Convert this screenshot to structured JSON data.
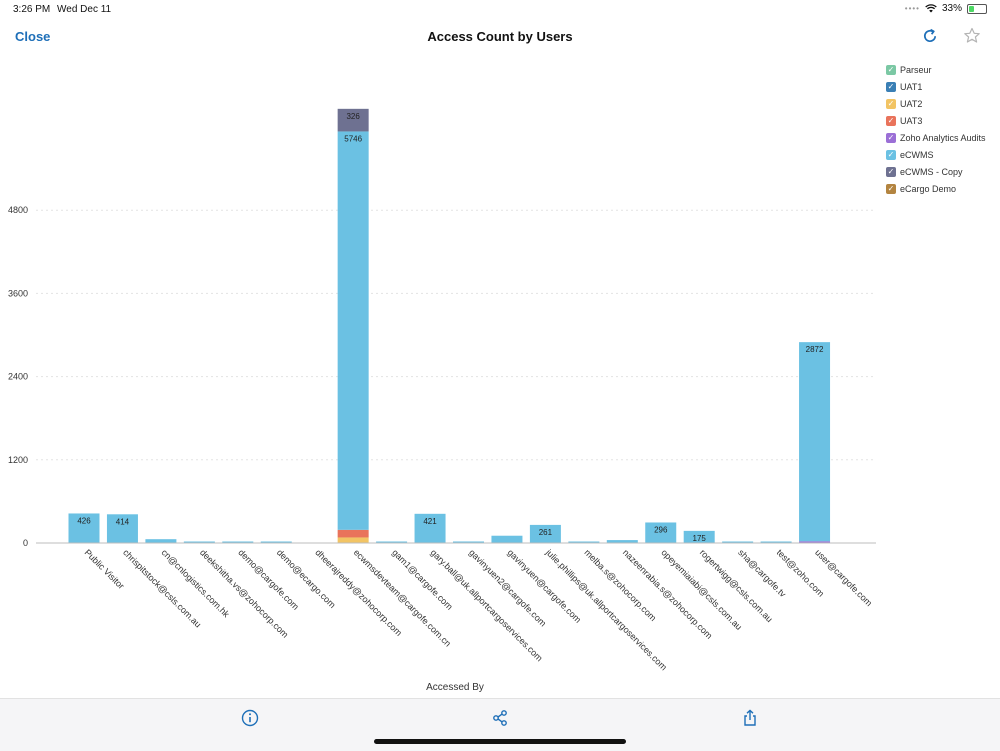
{
  "status": {
    "time": "3:26 PM",
    "date": "Wed Dec 11",
    "battery": "33%",
    "battery_level": 0.33
  },
  "header": {
    "close_label": "Close",
    "title": "Access Count by Users",
    "refresh_icon": "refresh-icon",
    "star_icon": "star-icon"
  },
  "footer": {
    "info_icon": "info-icon",
    "share_icon": "share-icon",
    "export_icon": "export-icon"
  },
  "colors": {
    "Parseur": "#7bc8a4",
    "UAT1": "#3a7fb5",
    "UAT2": "#f2c464",
    "UAT3": "#e9735b",
    "Zoho Analytics Audits": "#9b6fd6",
    "eCWMS": "#6bc1e3",
    "eCWMS - Copy": "#6e7191",
    "eCargo Demo": "#b38440"
  },
  "chart_data": {
    "type": "bar",
    "stacked": true,
    "title": "Access Count by Users",
    "xlabel": "Accessed By",
    "ylabel": "",
    "ylim": [
      0,
      6000
    ],
    "yticks": [
      0,
      1200,
      2400,
      3600,
      4800
    ],
    "legend_position": "right",
    "grid": true,
    "categories": [
      "Public Visitor",
      "chrispitstock@csls.com.au",
      "cn@cnlogistics.com.hk",
      "deekshitha.vs@zohocorp.com",
      "demo@cargofe.com",
      "demo@ecargo.com",
      "dheerajreddy@zohocorp.com",
      "ecwmsdevteam@cargofe.com.cn",
      "gam1@cargofe.com",
      "gary.ball@uk.allportcargoservices.com",
      "gavinyuen2@cargofe.com",
      "gavinyuen@cargofe.com",
      "julie.phillips@uk.allportcargoservices.com",
      "melba.s@zohocorp.com",
      "nazeenrabia.s@zohocorp.com",
      "opeyemiaiabi@csls.com.au",
      "rogertwigg@csls.com.au",
      "sha@cargofe.tv",
      "test@zoho.com",
      "user@cargofe.com"
    ],
    "series": [
      {
        "name": "Parseur",
        "values": [
          0,
          0,
          0,
          0,
          0,
          0,
          0,
          0,
          0,
          0,
          0,
          0,
          0,
          0,
          0,
          0,
          0,
          0,
          0,
          0
        ]
      },
      {
        "name": "UAT1",
        "values": [
          0,
          0,
          0,
          0,
          0,
          0,
          0,
          0,
          0,
          0,
          0,
          0,
          0,
          0,
          0,
          0,
          0,
          0,
          0,
          0
        ]
      },
      {
        "name": "UAT2",
        "values": [
          0,
          0,
          0,
          0,
          0,
          0,
          0,
          80,
          0,
          0,
          0,
          0,
          0,
          0,
          0,
          0,
          0,
          0,
          0,
          0
        ]
      },
      {
        "name": "UAT3",
        "values": [
          0,
          0,
          0,
          0,
          0,
          0,
          0,
          110,
          0,
          0,
          0,
          0,
          0,
          0,
          0,
          0,
          0,
          0,
          0,
          0
        ]
      },
      {
        "name": "Zoho Analytics Audits",
        "values": [
          0,
          0,
          0,
          0,
          0,
          0,
          0,
          0,
          0,
          0,
          0,
          0,
          0,
          0,
          0,
          0,
          0,
          0,
          0,
          25
        ]
      },
      {
        "name": "eCWMS",
        "values": [
          426,
          414,
          55,
          5,
          18,
          10,
          0,
          5746,
          3,
          421,
          22,
          105,
          261,
          3,
          42,
          296,
          175,
          8,
          6,
          2872
        ]
      },
      {
        "name": "eCWMS - Copy",
        "values": [
          0,
          0,
          0,
          0,
          0,
          0,
          0,
          326,
          0,
          0,
          0,
          0,
          0,
          0,
          0,
          0,
          0,
          0,
          0,
          0
        ]
      },
      {
        "name": "eCargo Demo",
        "values": [
          0,
          0,
          0,
          0,
          0,
          0,
          0,
          0,
          0,
          0,
          0,
          0,
          0,
          0,
          0,
          0,
          0,
          0,
          0,
          0
        ]
      }
    ],
    "data_labels": [
      {
        "category": "Public Visitor",
        "series": "eCWMS",
        "label": "426"
      },
      {
        "category": "chrispitstock@csls.com.au",
        "series": "eCWMS",
        "label": "414"
      },
      {
        "category": "ecwmsdevteam@cargofe.com.cn",
        "series": "eCWMS",
        "label": "5746"
      },
      {
        "category": "ecwmsdevteam@cargofe.com.cn",
        "series": "eCWMS - Copy",
        "label": "326"
      },
      {
        "category": "gary.ball@uk.allportcargoservices.com",
        "series": "eCWMS",
        "label": "421"
      },
      {
        "category": "julie.phillips@uk.allportcargoservices.com",
        "series": "eCWMS",
        "label": "261"
      },
      {
        "category": "opeyemiaiabi@csls.com.au",
        "series": "eCWMS",
        "label": "296"
      },
      {
        "category": "rogertwigg@csls.com.au",
        "series": "eCWMS",
        "label": "175"
      },
      {
        "category": "user@cargofe.com",
        "series": "eCWMS",
        "label": "2872"
      }
    ]
  }
}
